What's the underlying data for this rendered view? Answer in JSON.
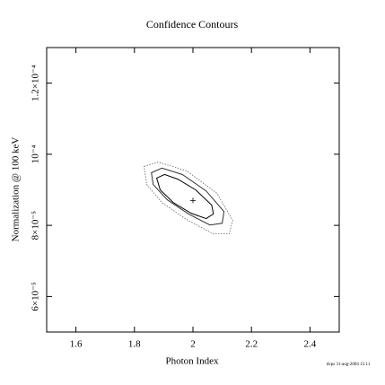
{
  "chart_data": {
    "type": "contour",
    "title": "Confidence Contours",
    "x_label": "Photon Index",
    "y_label": "Normalization @ 100 keV",
    "footer": "dxps 31-aug-2004 15:11",
    "xlim": [
      1.5,
      2.5
    ],
    "xticks": [
      1.6,
      1.8,
      2,
      2.2,
      2.4
    ],
    "ylim": [
      5e-05,
      0.00013
    ],
    "yticks": [
      {
        "value": 6e-05,
        "label": "6×10⁻⁵"
      },
      {
        "value": 8e-05,
        "label": "8×10⁻⁵"
      },
      {
        "value": 0.0001,
        "label": "10⁻⁴"
      },
      {
        "value": 0.00012,
        "label": "1.2×10⁻⁴"
      }
    ],
    "best_fit": {
      "x": 2.0,
      "y": 8.7e-05
    },
    "series": [
      {
        "color": "#000000",
        "style": "solid",
        "x": [
          1.876,
          1.903,
          1.948,
          2.009,
          2.064,
          2.07,
          2.045,
          1.994,
          1.933,
          1.888
        ],
        "y": [
          9.33e-05,
          9.43e-05,
          9.3e-05,
          9e-05,
          8.57e-05,
          8.32e-05,
          8.19e-05,
          8.34e-05,
          8.64e-05,
          9e-05
        ]
      },
      {
        "color": "#333333",
        "style": "solid",
        "x": [
          1.858,
          1.894,
          1.964,
          2.045,
          2.106,
          2.1,
          2.058,
          1.985,
          1.912,
          1.864
        ],
        "y": [
          9.48e-05,
          9.61e-05,
          9.43e-05,
          8.97e-05,
          8.39e-05,
          8.06e-05,
          8.01e-05,
          8.32e-05,
          8.72e-05,
          9.15e-05
        ]
      },
      {
        "color": "#666666",
        "style": "dotted",
        "x": [
          1.833,
          1.882,
          1.979,
          2.082,
          2.136,
          2.124,
          2.07,
          1.979,
          1.894,
          1.842
        ],
        "y": [
          9.66e-05,
          9.78e-05,
          9.53e-05,
          8.9e-05,
          8.14e-05,
          7.76e-05,
          7.76e-05,
          8.16e-05,
          8.64e-05,
          9.15e-05
        ]
      }
    ]
  }
}
